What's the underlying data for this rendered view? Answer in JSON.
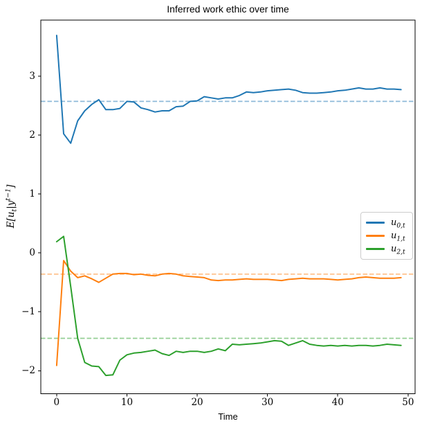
{
  "title": "Inferred work ethic over time",
  "xlabel": "Time",
  "ylabel": {
    "pre": "E[u",
    "sub": "t",
    "mid": "|y",
    "sup": "t−1",
    "post": "]"
  },
  "legend": {
    "items": [
      {
        "base": "u",
        "sub": "0,t",
        "color": "#1f77b4"
      },
      {
        "base": "u",
        "sub": "1,t",
        "color": "#ff7f0e"
      },
      {
        "base": "u",
        "sub": "2,t",
        "color": "#2ca02c"
      }
    ]
  },
  "chart_data": {
    "type": "line",
    "title": "Inferred work ethic over time",
    "xlabel": "Time",
    "ylabel": "E[u_t | y^(t-1)]",
    "grid": false,
    "legend_position": "center right",
    "xlim": [
      -2.25,
      51.0
    ],
    "ylim": [
      -2.39,
      3.95
    ],
    "xticks": [
      0,
      10,
      20,
      30,
      40,
      50
    ],
    "xtick_labels": [
      "0",
      "10",
      "20",
      "30",
      "40",
      "50"
    ],
    "yticks": [
      -2,
      -1,
      0,
      1,
      2,
      3
    ],
    "ytick_labels": [
      "−2",
      "−1",
      "0",
      "1",
      "2",
      "3"
    ],
    "x": [
      0,
      1,
      2,
      3,
      4,
      5,
      6,
      7,
      8,
      9,
      10,
      11,
      12,
      13,
      14,
      15,
      16,
      17,
      18,
      19,
      20,
      21,
      22,
      23,
      24,
      25,
      26,
      27,
      28,
      29,
      30,
      31,
      32,
      33,
      34,
      35,
      36,
      37,
      38,
      39,
      40,
      41,
      42,
      43,
      44,
      45,
      46,
      47,
      48,
      49
    ],
    "series": [
      {
        "name": "u_{0,t}",
        "color": "#1f77b4",
        "values": [
          3.69,
          2.02,
          1.86,
          2.24,
          2.41,
          2.52,
          2.6,
          2.43,
          2.43,
          2.45,
          2.57,
          2.56,
          2.46,
          2.43,
          2.39,
          2.41,
          2.41,
          2.48,
          2.49,
          2.57,
          2.58,
          2.65,
          2.63,
          2.61,
          2.63,
          2.63,
          2.67,
          2.73,
          2.72,
          2.73,
          2.75,
          2.76,
          2.77,
          2.78,
          2.76,
          2.72,
          2.71,
          2.71,
          2.72,
          2.73,
          2.75,
          2.76,
          2.78,
          2.8,
          2.78,
          2.78,
          2.8,
          2.78,
          2.78,
          2.77
        ]
      },
      {
        "name": "u_{1,t}",
        "color": "#ff7f0e",
        "values": [
          -1.91,
          -0.13,
          -0.31,
          -0.42,
          -0.39,
          -0.44,
          -0.5,
          -0.43,
          -0.36,
          -0.35,
          -0.35,
          -0.37,
          -0.36,
          -0.38,
          -0.39,
          -0.36,
          -0.35,
          -0.36,
          -0.39,
          -0.4,
          -0.41,
          -0.42,
          -0.46,
          -0.47,
          -0.46,
          -0.46,
          -0.45,
          -0.44,
          -0.45,
          -0.45,
          -0.45,
          -0.46,
          -0.47,
          -0.45,
          -0.44,
          -0.43,
          -0.44,
          -0.44,
          -0.44,
          -0.45,
          -0.46,
          -0.45,
          -0.44,
          -0.42,
          -0.41,
          -0.42,
          -0.43,
          -0.43,
          -0.43,
          -0.42
        ]
      },
      {
        "name": "u_{2,t}",
        "color": "#2ca02c",
        "values": [
          0.19,
          0.28,
          -0.57,
          -1.45,
          -1.86,
          -1.92,
          -1.93,
          -2.08,
          -2.07,
          -1.82,
          -1.73,
          -1.7,
          -1.69,
          -1.67,
          -1.65,
          -1.71,
          -1.74,
          -1.67,
          -1.69,
          -1.67,
          -1.67,
          -1.69,
          -1.67,
          -1.63,
          -1.66,
          -1.55,
          -1.56,
          -1.55,
          -1.54,
          -1.53,
          -1.51,
          -1.49,
          -1.5,
          -1.57,
          -1.53,
          -1.49,
          -1.55,
          -1.57,
          -1.58,
          -1.57,
          -1.58,
          -1.57,
          -1.58,
          -1.57,
          -1.57,
          -1.58,
          -1.57,
          -1.55,
          -1.56,
          -1.57
        ]
      }
    ],
    "mean_lines": [
      {
        "series": "u_{0,t}",
        "value": 2.57,
        "color": "#1f77b4",
        "style": "dashed"
      },
      {
        "series": "u_{1,t}",
        "value": -0.36,
        "color": "#ff7f0e",
        "style": "dashed"
      },
      {
        "series": "u_{2,t}",
        "value": -1.45,
        "color": "#2ca02c",
        "style": "dashed"
      }
    ]
  }
}
